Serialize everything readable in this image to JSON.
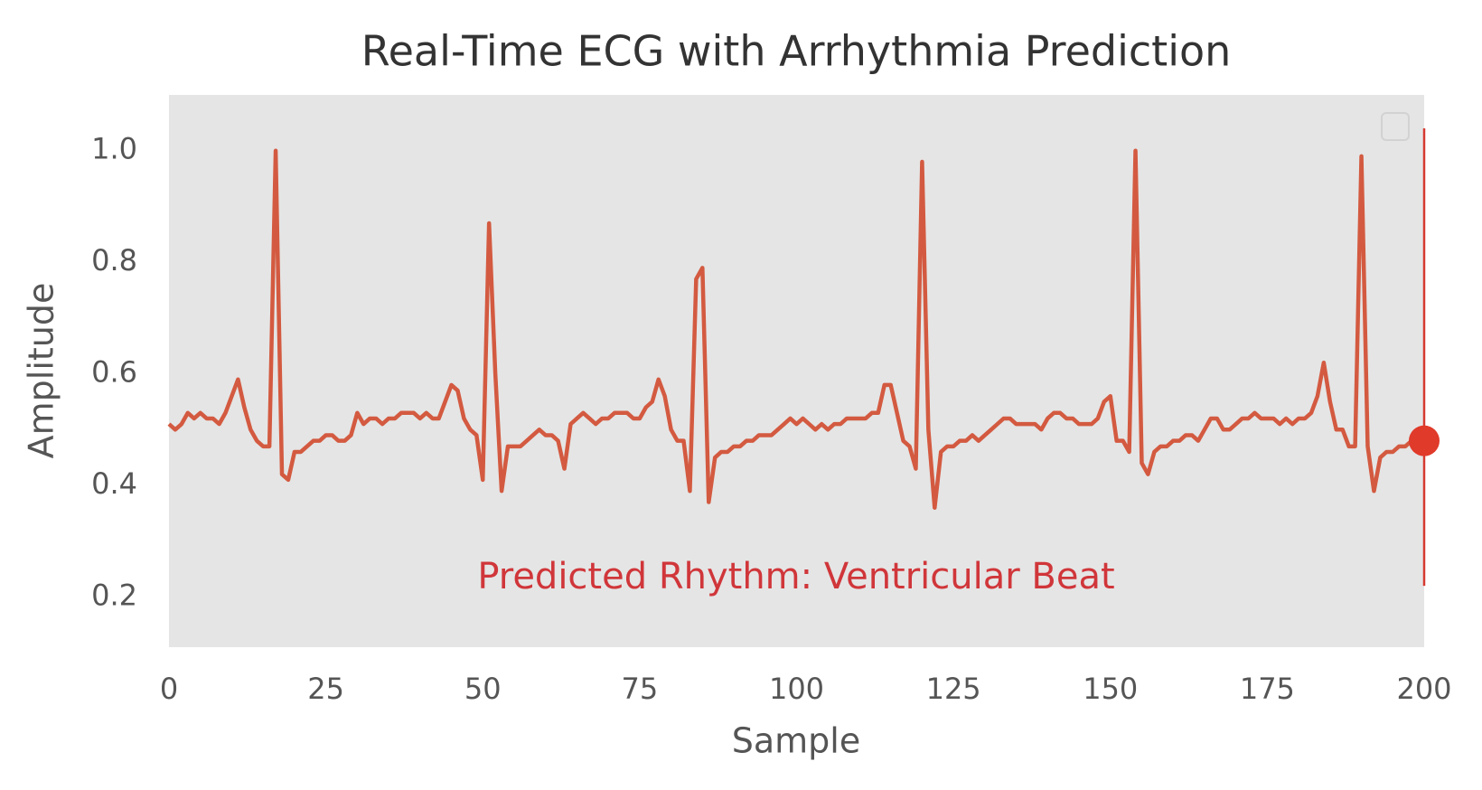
{
  "chart_data": {
    "type": "line",
    "title": "Real-Time ECG with Arrhythmia Prediction",
    "x_label": "Sample",
    "y_label": "Amplitude",
    "color": "#d35a40",
    "values": [
      0.51,
      0.5,
      0.51,
      0.53,
      0.52,
      0.53,
      0.52,
      0.52,
      0.51,
      0.53,
      0.56,
      0.59,
      0.54,
      0.5,
      0.48,
      0.47,
      0.47,
      1.0,
      0.42,
      0.41,
      0.46,
      0.46,
      0.47,
      0.48,
      0.48,
      0.49,
      0.49,
      0.48,
      0.48,
      0.49,
      0.53,
      0.51,
      0.52,
      0.52,
      0.51,
      0.52,
      0.52,
      0.53,
      0.53,
      0.53,
      0.52,
      0.53,
      0.52,
      0.52,
      0.55,
      0.58,
      0.57,
      0.52,
      0.5,
      0.49,
      0.41,
      0.87,
      0.6,
      0.39,
      0.47,
      0.47,
      0.47,
      0.48,
      0.49,
      0.5,
      0.49,
      0.49,
      0.48,
      0.43,
      0.51,
      0.52,
      0.53,
      0.52,
      0.51,
      0.52,
      0.52,
      0.53,
      0.53,
      0.53,
      0.52,
      0.52,
      0.54,
      0.55,
      0.59,
      0.56,
      0.5,
      0.48,
      0.48,
      0.39,
      0.77,
      0.79,
      0.37,
      0.45,
      0.46,
      0.46,
      0.47,
      0.47,
      0.48,
      0.48,
      0.49,
      0.49,
      0.49,
      0.5,
      0.51,
      0.52,
      0.51,
      0.52,
      0.51,
      0.5,
      0.51,
      0.5,
      0.51,
      0.51,
      0.52,
      0.52,
      0.52,
      0.52,
      0.53,
      0.53,
      0.58,
      0.58,
      0.53,
      0.48,
      0.47,
      0.43,
      0.98,
      0.5,
      0.36,
      0.46,
      0.47,
      0.47,
      0.48,
      0.48,
      0.49,
      0.48,
      0.49,
      0.5,
      0.51,
      0.52,
      0.52,
      0.51,
      0.51,
      0.51,
      0.51,
      0.5,
      0.52,
      0.53,
      0.53,
      0.52,
      0.52,
      0.51,
      0.51,
      0.51,
      0.52,
      0.55,
      0.56,
      0.48,
      0.48,
      0.46,
      1.0,
      0.44,
      0.42,
      0.46,
      0.47,
      0.47,
      0.48,
      0.48,
      0.49,
      0.49,
      0.48,
      0.5,
      0.52,
      0.52,
      0.5,
      0.5,
      0.51,
      0.52,
      0.52,
      0.53,
      0.52,
      0.52,
      0.52,
      0.51,
      0.52,
      0.51,
      0.52,
      0.52,
      0.53,
      0.56,
      0.62,
      0.55,
      0.5,
      0.5,
      0.47,
      0.47,
      0.99,
      0.47,
      0.39,
      0.45,
      0.46,
      0.46,
      0.47,
      0.47,
      0.48,
      0.48,
      0.48
    ],
    "marker": {
      "x": 200,
      "y": 0.48,
      "color": "#e03a2a"
    },
    "cursor": {
      "x": 200,
      "ylim": [
        0.22,
        1.04
      ],
      "color": "#d63a30"
    },
    "annotation": {
      "text": "Predicted Rhythm: Ventricular Beat",
      "color": "#d0363a"
    },
    "xlim": [
      0,
      200
    ],
    "ylim": [
      0.11,
      1.1
    ],
    "xticks": [
      0,
      25,
      50,
      75,
      100,
      125,
      150,
      175,
      200
    ],
    "yticks": [
      0.2,
      0.4,
      0.6,
      0.8,
      {
        "value": 1,
        "label": "1.0"
      }
    ],
    "grid": false,
    "background": "#e5e5e5"
  }
}
